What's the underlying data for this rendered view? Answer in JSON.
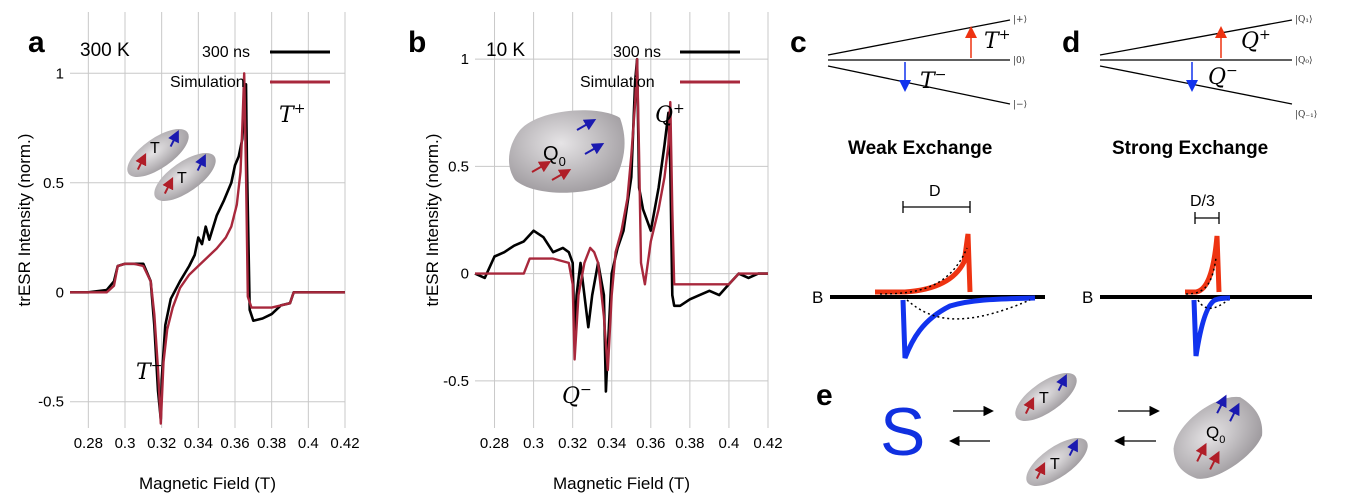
{
  "panels": {
    "a": {
      "letter": "a",
      "temperature": "300 K",
      "legend_data": "300 ns",
      "legend_sim": "Simulation",
      "label_top": "T",
      "label_top_sup": "+",
      "label_bot": "T",
      "label_bot_sup": "−",
      "cartoon_labels": [
        "T",
        "T"
      ]
    },
    "b": {
      "letter": "b",
      "temperature": "10 K",
      "legend_data": "300 ns",
      "legend_sim": "Simulation",
      "label_top": "Q",
      "label_top_sup": "+",
      "label_bot": "Q",
      "label_bot_sup": "−",
      "cartoon_label": "Q",
      "cartoon_sub": "0"
    },
    "c": {
      "letter": "c",
      "levels": [
        "|+⟩",
        "|0⟩",
        "|−⟩"
      ],
      "up_label": "T",
      "up_sup": "+",
      "down_label": "T",
      "down_sup": "−",
      "regime": "Weak Exchange",
      "width_label": "D",
      "b_label": "B"
    },
    "d": {
      "letter": "d",
      "levels": [
        "|Q₁⟩",
        "|Q₀⟩",
        "|Q₋₁⟩"
      ],
      "up_label": "Q",
      "up_sup": "+",
      "down_label": "Q",
      "down_sup": "−",
      "regime": "Strong Exchange",
      "width_label": "D/3",
      "b_label": "B"
    },
    "e": {
      "letter": "e",
      "singlet": "S",
      "triplet_label": "T",
      "quintet_label": "Q",
      "quintet_sub": "0"
    }
  },
  "colors": {
    "data": "#000000",
    "simulation": "#a8283c",
    "up": "#ee3311",
    "down": "#1133ee",
    "singlet": "#1030e0",
    "cartoon": "#b4b0b4"
  },
  "chart_data": [
    {
      "type": "line",
      "panel": "a",
      "title": "",
      "xlabel": "Magnetic Field (T)",
      "ylabel": "trESR Intensity (norm.)",
      "xlim": [
        0.27,
        0.42
      ],
      "ylim": [
        -0.62,
        1.28
      ],
      "xticks": [
        0.28,
        0.3,
        0.32,
        0.34,
        0.36,
        0.38,
        0.4,
        0.42
      ],
      "xtick_labels": [
        "0.28",
        "0.3",
        "0.32",
        "0.34",
        "0.36",
        "0.38",
        "0.4",
        "0.42"
      ],
      "yticks": [
        -0.5,
        0,
        0.5,
        1
      ],
      "ytick_labels": [
        "-0.5",
        "0",
        "0.5",
        "1"
      ],
      "grid": true,
      "legend_position": "top-right",
      "series": [
        {
          "name": "300 ns",
          "x": [
            0.27,
            0.28,
            0.29,
            0.294,
            0.296,
            0.3,
            0.305,
            0.31,
            0.314,
            0.316,
            0.318,
            0.3195,
            0.32,
            0.322,
            0.325,
            0.33,
            0.335,
            0.338,
            0.34,
            0.342,
            0.344,
            0.346,
            0.35,
            0.354,
            0.358,
            0.36,
            0.362,
            0.364,
            0.365,
            0.366,
            0.3665,
            0.368,
            0.37,
            0.375,
            0.38,
            0.385,
            0.39,
            0.392,
            0.395,
            0.4,
            0.41,
            0.42
          ],
          "y": [
            0.0,
            0.0,
            0.01,
            0.05,
            0.12,
            0.13,
            0.13,
            0.13,
            0.05,
            -0.15,
            -0.45,
            -0.58,
            -0.4,
            -0.15,
            -0.03,
            0.05,
            0.12,
            0.17,
            0.25,
            0.22,
            0.3,
            0.24,
            0.35,
            0.42,
            0.5,
            0.58,
            0.62,
            0.7,
            0.85,
            0.95,
            0.6,
            -0.08,
            -0.13,
            -0.12,
            -0.1,
            -0.06,
            -0.05,
            0.0,
            0.0,
            0.0,
            0.0,
            0.0
          ]
        },
        {
          "name": "Simulation",
          "x": [
            0.27,
            0.28,
            0.29,
            0.294,
            0.296,
            0.3,
            0.305,
            0.31,
            0.314,
            0.316,
            0.318,
            0.3195,
            0.321,
            0.323,
            0.326,
            0.33,
            0.335,
            0.34,
            0.345,
            0.35,
            0.355,
            0.358,
            0.361,
            0.363,
            0.364,
            0.365,
            0.366,
            0.367,
            0.369,
            0.372,
            0.375,
            0.38,
            0.385,
            0.39,
            0.392,
            0.395,
            0.4,
            0.41,
            0.42
          ],
          "y": [
            0.0,
            0.0,
            0.0,
            0.03,
            0.12,
            0.13,
            0.13,
            0.12,
            0.05,
            -0.1,
            -0.35,
            -0.6,
            -0.32,
            -0.17,
            -0.07,
            0.02,
            0.08,
            0.12,
            0.16,
            0.2,
            0.25,
            0.3,
            0.4,
            0.55,
            0.75,
            1.0,
            0.55,
            -0.02,
            -0.07,
            -0.07,
            -0.07,
            -0.07,
            -0.06,
            -0.05,
            0.0,
            0.0,
            0.0,
            0.0,
            0.0
          ]
        }
      ]
    },
    {
      "type": "line",
      "panel": "b",
      "title": "",
      "xlabel": "Magnetic Field (T)",
      "ylabel": "trESR Intensity (norm.)",
      "xlim": [
        0.27,
        0.42
      ],
      "ylim": [
        -0.72,
        1.22
      ],
      "xticks": [
        0.28,
        0.3,
        0.32,
        0.34,
        0.36,
        0.38,
        0.4,
        0.42
      ],
      "xtick_labels": [
        "0.28",
        "0.3",
        "0.32",
        "0.34",
        "0.36",
        "0.38",
        "0.4",
        "0.42"
      ],
      "yticks": [
        -0.5,
        0,
        0.5,
        1
      ],
      "ytick_labels": [
        "-0.5",
        "0",
        "0.5",
        "1"
      ],
      "grid": true,
      "legend_position": "top-right",
      "series": [
        {
          "name": "300 ns",
          "x": [
            0.27,
            0.275,
            0.28,
            0.285,
            0.29,
            0.295,
            0.3,
            0.305,
            0.31,
            0.315,
            0.318,
            0.32,
            0.321,
            0.322,
            0.324,
            0.326,
            0.328,
            0.33,
            0.333,
            0.336,
            0.337,
            0.338,
            0.34,
            0.343,
            0.346,
            0.35,
            0.352,
            0.353,
            0.354,
            0.356,
            0.36,
            0.364,
            0.367,
            0.369,
            0.37,
            0.371,
            0.372,
            0.375,
            0.38,
            0.385,
            0.39,
            0.395,
            0.4,
            0.405,
            0.41,
            0.415,
            0.42
          ],
          "y": [
            0.0,
            -0.02,
            0.08,
            0.1,
            0.13,
            0.15,
            0.2,
            0.17,
            0.1,
            0.12,
            0.1,
            0.05,
            -0.3,
            -0.1,
            0.05,
            -0.1,
            -0.25,
            -0.1,
            0.05,
            -0.1,
            -0.55,
            -0.35,
            0.0,
            0.12,
            0.2,
            0.45,
            0.9,
            1.0,
            0.4,
            0.3,
            0.2,
            0.4,
            0.6,
            0.75,
            0.5,
            -0.1,
            -0.15,
            -0.15,
            -0.12,
            -0.1,
            -0.08,
            -0.1,
            -0.05,
            0.0,
            -0.02,
            0.0,
            0.0
          ]
        },
        {
          "name": "Simulation",
          "x": [
            0.27,
            0.28,
            0.29,
            0.295,
            0.298,
            0.31,
            0.318,
            0.32,
            0.321,
            0.323,
            0.326,
            0.329,
            0.331,
            0.333,
            0.336,
            0.338,
            0.34,
            0.342,
            0.345,
            0.348,
            0.35,
            0.352,
            0.353,
            0.354,
            0.355,
            0.357,
            0.36,
            0.364,
            0.367,
            0.369,
            0.37,
            0.371,
            0.372,
            0.374,
            0.38,
            0.39,
            0.4,
            0.405,
            0.41,
            0.42
          ],
          "y": [
            0.0,
            0.0,
            0.0,
            0.0,
            0.07,
            0.07,
            0.05,
            -0.05,
            -0.4,
            -0.1,
            0.05,
            0.12,
            0.1,
            0.05,
            -0.2,
            -0.45,
            -0.1,
            0.1,
            0.2,
            0.35,
            0.55,
            0.8,
            1.0,
            0.55,
            0.05,
            -0.05,
            0.15,
            0.3,
            0.45,
            0.6,
            0.8,
            0.3,
            -0.05,
            -0.05,
            -0.05,
            -0.05,
            -0.05,
            0.0,
            0.0,
            0.0
          ]
        }
      ]
    }
  ]
}
